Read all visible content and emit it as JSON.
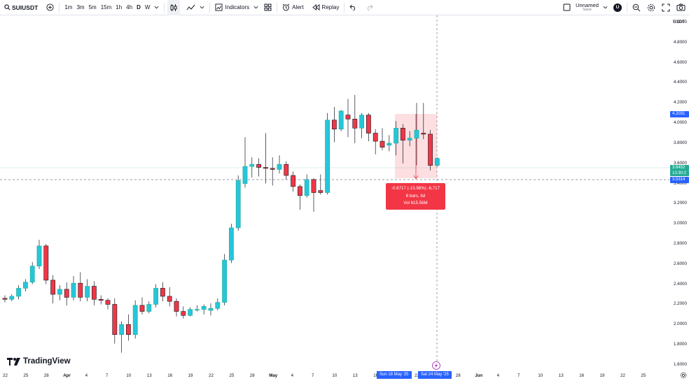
{
  "toolbar": {
    "symbol": "SUIUSDT",
    "intervals": [
      "1m",
      "3m",
      "5m",
      "15m",
      "1h",
      "4h",
      "D",
      "W"
    ],
    "active_interval": "D",
    "indicators_label": "Indicators",
    "alert_label": "Alert",
    "replay_label": "Replay",
    "layout_name": "Unnamed",
    "save_label": "Save",
    "avatar_letter": "U"
  },
  "price_scale": {
    "currency": "USDT",
    "ticks": [
      "5.0000",
      "4.8000",
      "4.6000",
      "4.4000",
      "4.2000",
      "4.0000",
      "3.8000",
      "3.6000",
      "3.4000",
      "3.2000",
      "3.0000",
      "2.8000",
      "2.6000",
      "2.4000",
      "2.2000",
      "2.0000",
      "1.8000",
      "1.6000"
    ],
    "badges": {
      "high": "4.2031",
      "last": "3.6452",
      "countdown": "13:30:2",
      "cursor": "3.5314"
    }
  },
  "time_scale": {
    "ticks": [
      "22",
      "25",
      "28",
      "Apr",
      "4",
      "7",
      "10",
      "13",
      "16",
      "19",
      "22",
      "25",
      "28",
      "May",
      "4",
      "7",
      "10",
      "13",
      "16",
      "19",
      "22",
      "25",
      "28",
      "Jun",
      "4",
      "7",
      "10",
      "13",
      "16",
      "19",
      "22",
      "25"
    ],
    "range_start": "Sun 18 May '25",
    "range_end": "Sat 24 May '25"
  },
  "measure": {
    "line1": "-0.6717 (-15.98%) -6,717",
    "line2": "6 bars, 6d",
    "line3": "Vol 615.56M"
  },
  "logo_text": "TradingView",
  "colors": {
    "up": "#22ab94",
    "up_fill": "#26c6da",
    "down": "#f23645",
    "accent": "#2962ff"
  },
  "chart_data": {
    "type": "candlestick",
    "ylim": [
      1.6,
      5.0
    ],
    "candles": [
      {
        "d": "Mar 22",
        "o": 2.26,
        "h": 2.29,
        "l": 2.22,
        "c": 2.25
      },
      {
        "d": "Mar 23",
        "o": 2.25,
        "h": 2.3,
        "l": 2.23,
        "c": 2.28
      },
      {
        "d": "Mar 24",
        "o": 2.28,
        "h": 2.39,
        "l": 2.25,
        "c": 2.36
      },
      {
        "d": "Mar 25",
        "o": 2.36,
        "h": 2.45,
        "l": 2.33,
        "c": 2.42
      },
      {
        "d": "Mar 26",
        "o": 2.42,
        "h": 2.62,
        "l": 2.4,
        "c": 2.58
      },
      {
        "d": "Mar 27",
        "o": 2.58,
        "h": 2.84,
        "l": 2.55,
        "c": 2.78
      },
      {
        "d": "Mar 28",
        "o": 2.78,
        "h": 2.8,
        "l": 2.4,
        "c": 2.44
      },
      {
        "d": "Mar 29",
        "o": 2.44,
        "h": 2.49,
        "l": 2.21,
        "c": 2.3
      },
      {
        "d": "Mar 30",
        "o": 2.3,
        "h": 2.39,
        "l": 2.24,
        "c": 2.35
      },
      {
        "d": "Mar 31",
        "o": 2.35,
        "h": 2.42,
        "l": 2.19,
        "c": 2.27
      },
      {
        "d": "Apr 1",
        "o": 2.27,
        "h": 2.48,
        "l": 2.24,
        "c": 2.41
      },
      {
        "d": "Apr 2",
        "o": 2.41,
        "h": 2.52,
        "l": 2.23,
        "c": 2.27
      },
      {
        "d": "Apr 3",
        "o": 2.27,
        "h": 2.45,
        "l": 2.23,
        "c": 2.38
      },
      {
        "d": "Apr 4",
        "o": 2.38,
        "h": 2.43,
        "l": 2.19,
        "c": 2.25
      },
      {
        "d": "Apr 5",
        "o": 2.25,
        "h": 2.29,
        "l": 2.2,
        "c": 2.24
      },
      {
        "d": "Apr 6",
        "o": 2.24,
        "h": 2.26,
        "l": 2.15,
        "c": 2.2
      },
      {
        "d": "Apr 7",
        "o": 2.2,
        "h": 2.26,
        "l": 1.81,
        "c": 1.9
      },
      {
        "d": "Apr 8",
        "o": 1.9,
        "h": 2.03,
        "l": 1.72,
        "c": 2.0
      },
      {
        "d": "Apr 9",
        "o": 2.0,
        "h": 2.1,
        "l": 1.84,
        "c": 1.9
      },
      {
        "d": "Apr 10",
        "o": 1.9,
        "h": 2.24,
        "l": 1.86,
        "c": 2.19
      },
      {
        "d": "Apr 11",
        "o": 2.19,
        "h": 2.27,
        "l": 2.1,
        "c": 2.13
      },
      {
        "d": "Apr 12",
        "o": 2.13,
        "h": 2.23,
        "l": 2.11,
        "c": 2.2
      },
      {
        "d": "Apr 13",
        "o": 2.2,
        "h": 2.4,
        "l": 2.17,
        "c": 2.36
      },
      {
        "d": "Apr 14",
        "o": 2.36,
        "h": 2.42,
        "l": 2.23,
        "c": 2.28
      },
      {
        "d": "Apr 15",
        "o": 2.28,
        "h": 2.37,
        "l": 2.18,
        "c": 2.23
      },
      {
        "d": "Apr 16",
        "o": 2.23,
        "h": 2.26,
        "l": 2.08,
        "c": 2.13
      },
      {
        "d": "Apr 17",
        "o": 2.13,
        "h": 2.18,
        "l": 2.06,
        "c": 2.09
      },
      {
        "d": "Apr 18",
        "o": 2.09,
        "h": 2.17,
        "l": 2.08,
        "c": 2.15
      },
      {
        "d": "Apr 19",
        "o": 2.15,
        "h": 2.19,
        "l": 2.13,
        "c": 2.15
      },
      {
        "d": "Apr 20",
        "o": 2.15,
        "h": 2.2,
        "l": 2.1,
        "c": 2.18
      },
      {
        "d": "Apr 21",
        "o": 2.14,
        "h": 2.21,
        "l": 2.09,
        "c": 2.16
      },
      {
        "d": "Apr 22",
        "o": 2.16,
        "h": 2.26,
        "l": 2.14,
        "c": 2.22
      },
      {
        "d": "Apr 23",
        "o": 2.22,
        "h": 2.7,
        "l": 2.19,
        "c": 2.64
      },
      {
        "d": "Apr 24",
        "o": 2.64,
        "h": 3.0,
        "l": 2.61,
        "c": 2.96
      },
      {
        "d": "Apr 25",
        "o": 2.96,
        "h": 3.48,
        "l": 2.93,
        "c": 3.43
      },
      {
        "d": "Apr 26",
        "o": 3.4,
        "h": 3.86,
        "l": 3.36,
        "c": 3.57
      },
      {
        "d": "Apr 27",
        "o": 3.57,
        "h": 3.66,
        "l": 3.46,
        "c": 3.59
      },
      {
        "d": "Apr 28",
        "o": 3.59,
        "h": 3.65,
        "l": 3.47,
        "c": 3.56
      },
      {
        "d": "Apr 29",
        "o": 3.56,
        "h": 3.9,
        "l": 3.4,
        "c": 3.55
      },
      {
        "d": "Apr 30",
        "o": 3.55,
        "h": 3.66,
        "l": 3.38,
        "c": 3.54
      },
      {
        "d": "May 1",
        "o": 3.54,
        "h": 3.68,
        "l": 3.5,
        "c": 3.59
      },
      {
        "d": "May 2",
        "o": 3.59,
        "h": 3.62,
        "l": 3.44,
        "c": 3.48
      },
      {
        "d": "May 3",
        "o": 3.48,
        "h": 3.52,
        "l": 3.32,
        "c": 3.37
      },
      {
        "d": "May 4",
        "o": 3.37,
        "h": 3.39,
        "l": 3.14,
        "c": 3.28
      },
      {
        "d": "May 5",
        "o": 3.28,
        "h": 3.49,
        "l": 3.26,
        "c": 3.44
      },
      {
        "d": "May 6",
        "o": 3.44,
        "h": 3.45,
        "l": 3.12,
        "c": 3.31
      },
      {
        "d": "May 7",
        "o": 3.33,
        "h": 3.49,
        "l": 3.29,
        "c": 3.31
      },
      {
        "d": "May 8",
        "o": 3.31,
        "h": 4.1,
        "l": 3.29,
        "c": 4.03
      },
      {
        "d": "May 9",
        "o": 4.03,
        "h": 4.16,
        "l": 3.81,
        "c": 3.94
      },
      {
        "d": "May 10",
        "o": 3.94,
        "h": 4.13,
        "l": 3.92,
        "c": 4.12
      },
      {
        "d": "May 11",
        "o": 4.08,
        "h": 4.24,
        "l": 3.86,
        "c": 4.04
      },
      {
        "d": "May 12",
        "o": 4.04,
        "h": 4.28,
        "l": 3.8,
        "c": 3.95
      },
      {
        "d": "May 13",
        "o": 3.95,
        "h": 4.1,
        "l": 3.85,
        "c": 4.08
      },
      {
        "d": "May 14",
        "o": 4.08,
        "h": 4.1,
        "l": 3.82,
        "c": 3.9
      },
      {
        "d": "May 15",
        "o": 3.9,
        "h": 3.94,
        "l": 3.69,
        "c": 3.82
      },
      {
        "d": "May 16",
        "o": 3.82,
        "h": 3.95,
        "l": 3.73,
        "c": 3.76
      },
      {
        "d": "May 17",
        "o": 3.78,
        "h": 3.88,
        "l": 3.72,
        "c": 3.8
      },
      {
        "d": "May 18",
        "o": 3.8,
        "h": 4.02,
        "l": 3.68,
        "c": 3.95
      },
      {
        "d": "May 19",
        "o": 3.95,
        "h": 3.99,
        "l": 3.6,
        "c": 3.83
      },
      {
        "d": "May 20",
        "o": 3.83,
        "h": 3.92,
        "l": 3.77,
        "c": 3.85
      },
      {
        "d": "May 21",
        "o": 3.85,
        "h": 4.2,
        "l": 3.58,
        "c": 3.93
      },
      {
        "d": "May 22",
        "o": 3.9,
        "h": 4.2,
        "l": 3.84,
        "c": 3.89
      },
      {
        "d": "May 23",
        "o": 3.89,
        "h": 3.93,
        "l": 3.53,
        "c": 3.58
      },
      {
        "d": "May 24",
        "o": 3.58,
        "h": 3.66,
        "l": 3.57,
        "c": 3.65
      }
    ]
  }
}
